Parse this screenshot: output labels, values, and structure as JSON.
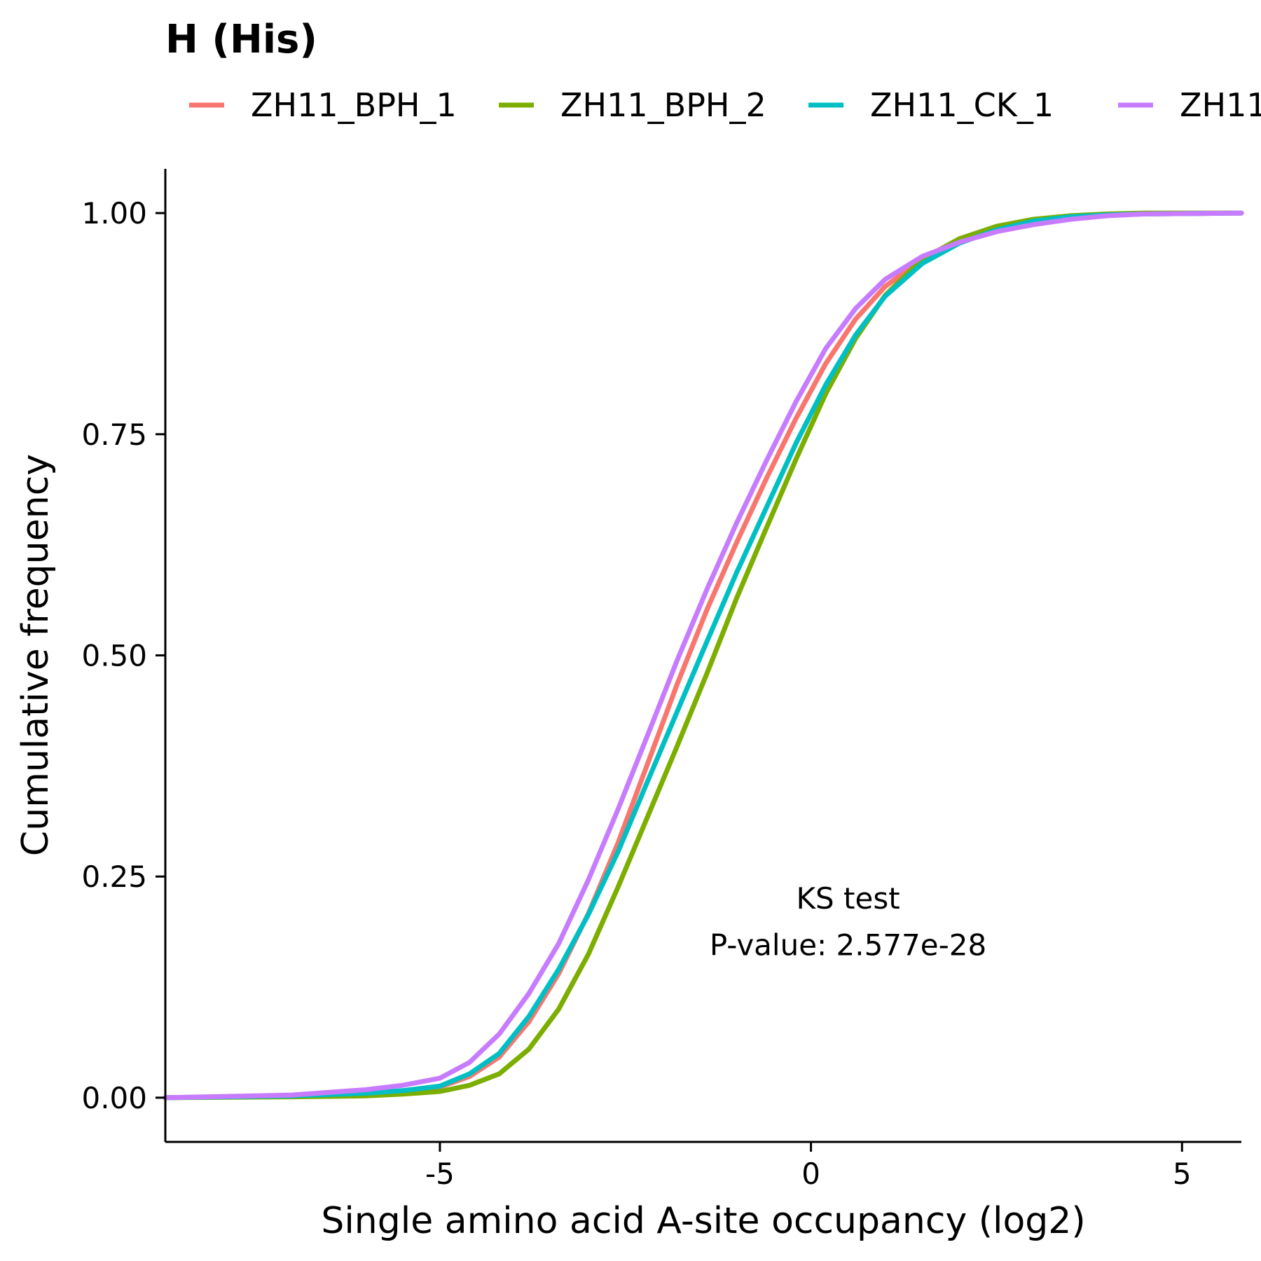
{
  "chart_data": {
    "type": "line",
    "title": "H (His)",
    "xlabel": "Single amino acid A-site occupancy (log2)",
    "ylabel": "Cumulative frequency",
    "xlim": [
      -8.7,
      5.8
    ],
    "ylim": [
      -0.05,
      1.05
    ],
    "xticks": [
      -5,
      0,
      5
    ],
    "xtick_labels": [
      "-5",
      "0",
      "5"
    ],
    "yticks": [
      0,
      0.25,
      0.5,
      0.75,
      1
    ],
    "ytick_labels": [
      "0.00",
      "0.25",
      "0.50",
      "0.75",
      "1.00"
    ],
    "grid": false,
    "legend_position": "top",
    "legend_labels": [
      "ZH11_BPH_1",
      "ZH11_BPH_2",
      "ZH11_CK_1",
      "ZH11_"
    ],
    "annotation": {
      "x": 0.5,
      "lines": [
        {
          "y": 0.225,
          "text": "KS test"
        },
        {
          "y": 0.172,
          "text": "P-value: 2.577e-28"
        }
      ]
    },
    "series": [
      {
        "name": "ZH11_BPH_1",
        "color": "#F8766D",
        "x": [
          -8.7,
          -7,
          -6,
          -5.5,
          -5,
          -4.6,
          -4.2,
          -3.8,
          -3.4,
          -3,
          -2.6,
          -2.2,
          -1.8,
          -1.4,
          -1,
          -0.6,
          -0.2,
          0.2,
          0.6,
          1,
          1.5,
          2,
          2.5,
          3,
          3.5,
          4,
          4.5,
          5.8
        ],
        "y": [
          0,
          0.002,
          0.004,
          0.007,
          0.012,
          0.024,
          0.046,
          0.086,
          0.14,
          0.208,
          0.288,
          0.378,
          0.468,
          0.552,
          0.628,
          0.7,
          0.768,
          0.83,
          0.88,
          0.917,
          0.948,
          0.968,
          0.982,
          0.991,
          0.996,
          0.998,
          0.999,
          1
        ]
      },
      {
        "name": "ZH11_BPH_2",
        "color": "#7CAE00",
        "x": [
          -8.7,
          -7,
          -6,
          -5.5,
          -5,
          -4.6,
          -4.2,
          -3.8,
          -3.4,
          -3,
          -2.6,
          -2.2,
          -1.8,
          -1.4,
          -1,
          -0.6,
          -0.2,
          0.2,
          0.6,
          1,
          1.5,
          2,
          2.5,
          3,
          3.5,
          4,
          4.5,
          5.8
        ],
        "y": [
          0,
          0.001,
          0.002,
          0.004,
          0.007,
          0.014,
          0.027,
          0.055,
          0.1,
          0.162,
          0.238,
          0.318,
          0.398,
          0.48,
          0.565,
          0.644,
          0.722,
          0.796,
          0.858,
          0.907,
          0.948,
          0.971,
          0.985,
          0.993,
          0.997,
          0.999,
          1,
          1
        ]
      },
      {
        "name": "ZH11_CK_1",
        "color": "#00BFC4",
        "x": [
          -8.7,
          -7,
          -6,
          -5.5,
          -5,
          -4.6,
          -4.2,
          -3.8,
          -3.4,
          -3,
          -2.6,
          -2.2,
          -1.8,
          -1.4,
          -1,
          -0.6,
          -0.2,
          0.2,
          0.6,
          1,
          1.5,
          2,
          2.5,
          3,
          3.5,
          4,
          4.5,
          5.8
        ],
        "y": [
          0,
          0.002,
          0.005,
          0.008,
          0.013,
          0.027,
          0.05,
          0.092,
          0.145,
          0.207,
          0.278,
          0.358,
          0.437,
          0.516,
          0.594,
          0.667,
          0.74,
          0.806,
          0.862,
          0.906,
          0.943,
          0.966,
          0.981,
          0.991,
          0.996,
          0.998,
          0.999,
          1
        ]
      },
      {
        "name": "ZH11_",
        "color": "#C77CFF",
        "x": [
          -8.7,
          -7,
          -6,
          -5.5,
          -5,
          -4.6,
          -4.2,
          -3.8,
          -3.4,
          -3,
          -2.6,
          -2.2,
          -1.8,
          -1.4,
          -1,
          -0.6,
          -0.2,
          0.2,
          0.6,
          1,
          1.5,
          2,
          2.5,
          3,
          3.5,
          4,
          4.5,
          5.8
        ],
        "y": [
          0,
          0.003,
          0.009,
          0.014,
          0.022,
          0.04,
          0.072,
          0.118,
          0.174,
          0.246,
          0.326,
          0.41,
          0.495,
          0.575,
          0.65,
          0.72,
          0.787,
          0.847,
          0.892,
          0.925,
          0.951,
          0.967,
          0.979,
          0.987,
          0.993,
          0.997,
          0.999,
          1
        ]
      }
    ]
  }
}
